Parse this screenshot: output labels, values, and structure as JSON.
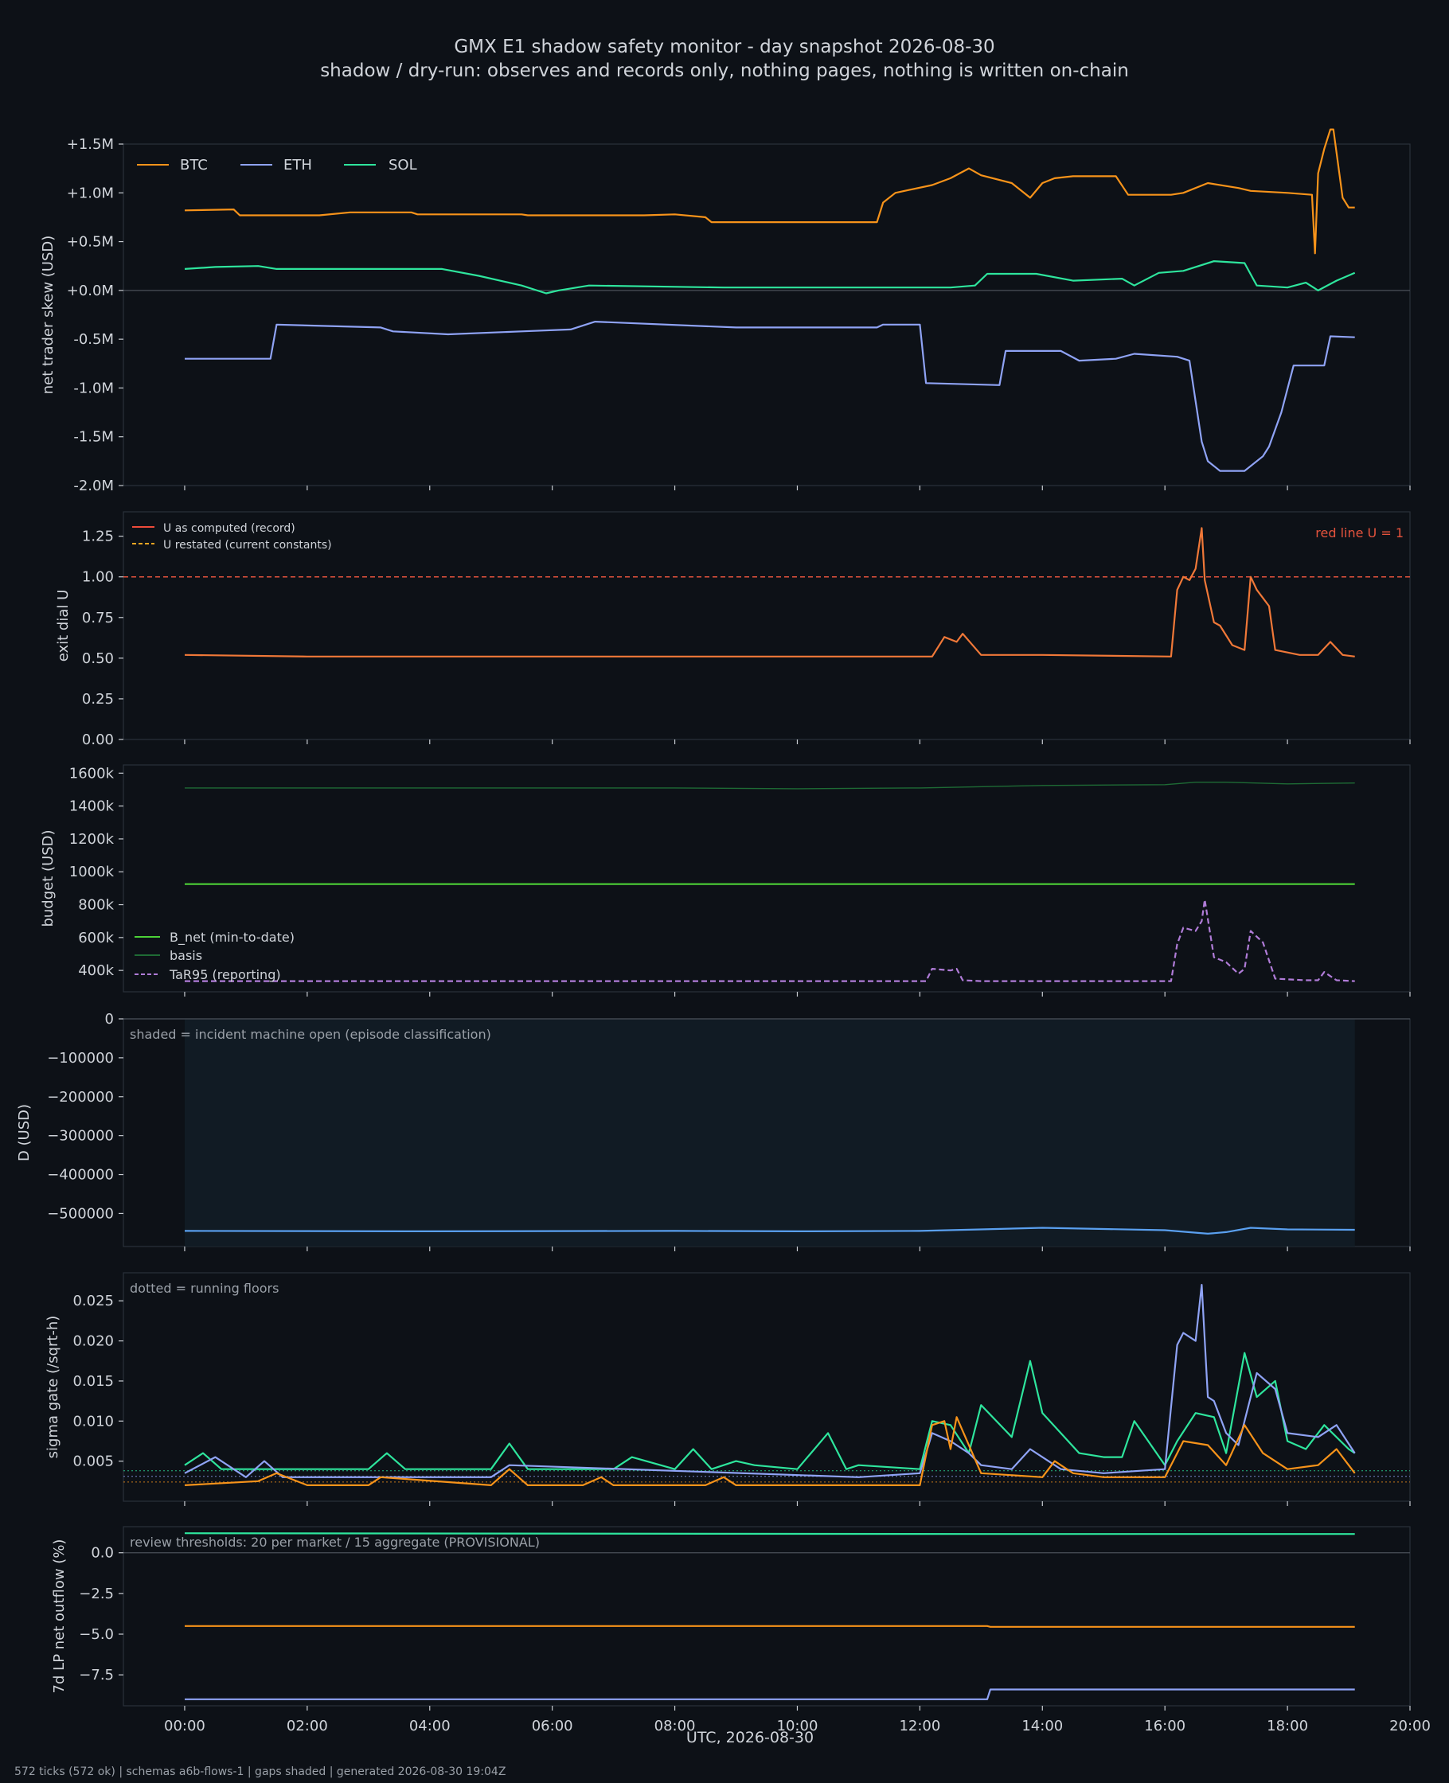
{
  "title": "GMX E1 shadow safety monitor - day snapshot 2026-08-30",
  "subtitle": "shadow / dry-run: observes and records only, nothing pages, nothing is written on-chain",
  "xlabel": "UTC, 2026-08-30",
  "footer": "572 ticks (572 ok) | schemas a6b-flows-1 | gaps shaded | generated 2026-08-30 19:04Z",
  "colors": {
    "background": "#0d1117",
    "btc": "#f7931a",
    "eth": "#8fa3f5",
    "sol": "#2ee59d",
    "u_record": "#ee4b3a",
    "u_restated": "#f5a623",
    "redline": "#e5533d",
    "b_net": "#4cd137",
    "basis": "#1e6b35",
    "tar95": "#b07cd8",
    "d_line": "#5aa0f0",
    "incident_shade": "#111b24"
  },
  "chart_data": [
    {
      "type": "line",
      "ylabel": "net trader skew (USD)",
      "xlim": [
        -1,
        20
      ],
      "ylim": [
        -2.0,
        1.5
      ],
      "yticks": [
        1.5,
        1.0,
        0.5,
        0.0,
        -0.5,
        -1.0,
        -1.5,
        -2.0
      ],
      "ytick_labels": [
        "+1.5M",
        "+1.0M",
        "+0.5M",
        "+0.0M",
        "-0.5M",
        "-1.0M",
        "-1.5M",
        "-2.0M"
      ],
      "zero_line": true,
      "legend": "top-left",
      "series": [
        {
          "name": "BTC",
          "color": "#f7931a",
          "x": [
            0,
            0.8,
            0.9,
            2.2,
            2.7,
            3.7,
            3.8,
            5.5,
            5.6,
            7.5,
            8.0,
            8.5,
            8.6,
            11.3,
            11.4,
            11.6,
            12.2,
            12.5,
            12.8,
            13.0,
            13.5,
            13.8,
            14.0,
            14.2,
            14.5,
            15.2,
            15.4,
            16.1,
            16.3,
            16.7,
            17.2,
            17.4,
            18.0,
            18.4,
            18.45,
            18.5,
            18.6,
            18.7,
            18.75,
            18.9,
            19.0,
            19.1
          ],
          "y": [
            0.82,
            0.83,
            0.77,
            0.77,
            0.8,
            0.8,
            0.78,
            0.78,
            0.77,
            0.77,
            0.78,
            0.75,
            0.7,
            0.7,
            0.9,
            1.0,
            1.08,
            1.15,
            1.25,
            1.18,
            1.1,
            0.95,
            1.1,
            1.15,
            1.17,
            1.17,
            0.98,
            0.98,
            1.0,
            1.1,
            1.05,
            1.02,
            1.0,
            0.98,
            0.38,
            1.2,
            1.45,
            1.65,
            1.65,
            0.95,
            0.85,
            0.85
          ]
        },
        {
          "name": "ETH",
          "color": "#8fa3f5",
          "x": [
            0,
            1.0,
            1.4,
            1.5,
            3.2,
            3.4,
            4.3,
            5.5,
            6.3,
            6.7,
            9.0,
            11.3,
            11.4,
            12.0,
            12.1,
            13.3,
            13.4,
            14.3,
            14.6,
            15.2,
            15.5,
            16.2,
            16.4,
            16.6,
            16.7,
            16.9,
            17.3,
            17.6,
            17.7,
            17.9,
            18.1,
            18.4,
            18.6,
            18.7,
            19.1
          ],
          "y": [
            -0.7,
            -0.7,
            -0.7,
            -0.35,
            -0.38,
            -0.42,
            -0.45,
            -0.42,
            -0.4,
            -0.32,
            -0.38,
            -0.38,
            -0.35,
            -0.35,
            -0.95,
            -0.97,
            -0.62,
            -0.62,
            -0.72,
            -0.7,
            -0.65,
            -0.68,
            -0.72,
            -1.55,
            -1.75,
            -1.85,
            -1.85,
            -1.7,
            -1.6,
            -1.25,
            -0.77,
            -0.77,
            -0.77,
            -0.47,
            -0.48
          ]
        },
        {
          "name": "SOL",
          "color": "#2ee59d",
          "x": [
            0,
            0.5,
            1.2,
            1.5,
            4.2,
            4.8,
            5.5,
            5.9,
            6.1,
            6.6,
            8.8,
            11.5,
            12.5,
            12.9,
            13.1,
            13.9,
            14.5,
            15.3,
            15.5,
            15.9,
            16.3,
            16.8,
            17.3,
            17.5,
            18.0,
            18.3,
            18.5,
            18.8,
            19.1
          ],
          "y": [
            0.22,
            0.24,
            0.25,
            0.22,
            0.22,
            0.15,
            0.05,
            -0.03,
            0.0,
            0.05,
            0.03,
            0.03,
            0.03,
            0.05,
            0.17,
            0.17,
            0.1,
            0.12,
            0.05,
            0.18,
            0.2,
            0.3,
            0.28,
            0.05,
            0.03,
            0.08,
            0.0,
            0.1,
            0.18
          ]
        }
      ]
    },
    {
      "type": "line",
      "ylabel": "exit dial U",
      "xlim": [
        -1,
        20
      ],
      "ylim": [
        0.0,
        1.4
      ],
      "yticks": [
        0.0,
        0.25,
        0.5,
        0.75,
        1.0,
        1.25
      ],
      "ytick_labels": [
        "0.00",
        "0.25",
        "0.50",
        "0.75",
        "1.00",
        "1.25"
      ],
      "reference_line": {
        "y": 1.0,
        "label": "red line U = 1"
      },
      "legend": "top-left",
      "series": [
        {
          "name": "U as computed (record)",
          "color": "#ee4b3a",
          "x": [
            0,
            2.0,
            12.2,
            12.4,
            12.6,
            12.7,
            13.0,
            14.0,
            16.1,
            16.2,
            16.3,
            16.4,
            16.5,
            16.6,
            16.65,
            16.8,
            16.9,
            17.1,
            17.3,
            17.4,
            17.5,
            17.7,
            17.8,
            18.2,
            18.5,
            18.7,
            18.9,
            19.1
          ],
          "y": [
            0.52,
            0.51,
            0.51,
            0.63,
            0.6,
            0.65,
            0.52,
            0.52,
            0.51,
            0.92,
            1.0,
            0.98,
            1.05,
            1.3,
            0.98,
            0.72,
            0.7,
            0.58,
            0.55,
            1.0,
            0.92,
            0.82,
            0.55,
            0.52,
            0.52,
            0.6,
            0.52,
            0.51
          ]
        },
        {
          "name": "U restated (current constants)",
          "color": "#f5a623",
          "dashed": true,
          "x": [
            0,
            2.0,
            12.2,
            12.4,
            12.6,
            12.7,
            13.0,
            14.0,
            16.1,
            16.2,
            16.3,
            16.4,
            16.5,
            16.6,
            16.65,
            16.8,
            16.9,
            17.1,
            17.3,
            17.4,
            17.5,
            17.7,
            17.8,
            18.2,
            18.5,
            18.7,
            18.9,
            19.1
          ],
          "y": [
            0.52,
            0.51,
            0.51,
            0.63,
            0.6,
            0.65,
            0.52,
            0.52,
            0.51,
            0.92,
            1.0,
            0.98,
            1.05,
            1.3,
            0.98,
            0.72,
            0.7,
            0.58,
            0.55,
            1.0,
            0.92,
            0.82,
            0.55,
            0.52,
            0.52,
            0.6,
            0.52,
            0.51
          ]
        }
      ]
    },
    {
      "type": "line",
      "ylabel": "budget (USD)",
      "xlim": [
        -1,
        20
      ],
      "ylim": [
        270,
        1650
      ],
      "yticks": [
        400,
        600,
        800,
        1000,
        1200,
        1400,
        1600
      ],
      "ytick_labels": [
        "400k",
        "600k",
        "800k",
        "1000k",
        "1200k",
        "1400k",
        "1600k"
      ],
      "legend": "lower-left",
      "series": [
        {
          "name": "B_net (min-to-date)",
          "color": "#4cd137",
          "x": [
            0,
            19.1
          ],
          "y": [
            925,
            925
          ]
        },
        {
          "name": "basis",
          "color": "#1e6b35",
          "x": [
            0,
            4,
            8,
            10,
            12,
            14,
            16,
            16.5,
            17,
            18,
            19.1
          ],
          "y": [
            1510,
            1510,
            1510,
            1505,
            1510,
            1525,
            1530,
            1545,
            1545,
            1535,
            1540
          ]
        },
        {
          "name": "TaR95 (reporting)",
          "color": "#b07cd8",
          "dashed": true,
          "x": [
            0,
            12.1,
            12.2,
            12.5,
            12.6,
            12.7,
            13.0,
            16.1,
            16.2,
            16.3,
            16.5,
            16.6,
            16.65,
            16.8,
            17.0,
            17.2,
            17.3,
            17.4,
            17.6,
            17.8,
            18.3,
            18.5,
            18.6,
            18.8,
            19.1
          ],
          "y": [
            335,
            335,
            410,
            400,
            410,
            340,
            335,
            335,
            560,
            660,
            640,
            700,
            830,
            480,
            450,
            380,
            410,
            640,
            570,
            350,
            340,
            340,
            390,
            340,
            335
          ]
        }
      ]
    },
    {
      "type": "line",
      "ylabel": "D (USD)",
      "xlim": [
        -1,
        20
      ],
      "ylim": [
        -585000,
        0
      ],
      "yticks": [
        0,
        -100000,
        -200000,
        -300000,
        -400000,
        -500000
      ],
      "ytick_labels": [
        "0",
        "−100000",
        "−200000",
        "−300000",
        "−400000",
        "−500000"
      ],
      "zero_line": true,
      "annotation": "shaded = incident machine open (episode classification)",
      "shade": {
        "x0": 0,
        "x1": 19.1
      },
      "series": [
        {
          "x": [
            0,
            4,
            8,
            10,
            12,
            13,
            14,
            15,
            16,
            16.7,
            17.0,
            17.4,
            18,
            19.1
          ],
          "y": [
            -545000,
            -546000,
            -545000,
            -546000,
            -545000,
            -541000,
            -537000,
            -540000,
            -543000,
            -552000,
            -548000,
            -537000,
            -541000,
            -542000
          ]
        }
      ]
    },
    {
      "type": "line",
      "ylabel": "sigma gate (/sqrt-h)",
      "xlim": [
        -1,
        20
      ],
      "ylim": [
        0.0,
        0.0285
      ],
      "yticks": [
        0.005,
        0.01,
        0.015,
        0.02,
        0.025
      ],
      "ytick_labels": [
        "0.005",
        "0.010",
        "0.015",
        "0.020",
        "0.025"
      ],
      "annotation": "dotted = running floors",
      "floors": [
        0.0038,
        0.0031,
        0.0024
      ],
      "series": [
        {
          "name": "SOL",
          "color": "#2ee59d",
          "x": [
            0,
            0.3,
            0.6,
            1.5,
            3.0,
            3.3,
            3.6,
            5.0,
            5.3,
            5.6,
            7.0,
            7.3,
            8.0,
            8.3,
            8.6,
            9.0,
            9.3,
            10.0,
            10.5,
            10.8,
            11.0,
            12.0,
            12.2,
            12.5,
            12.8,
            13.0,
            13.5,
            13.8,
            14.0,
            14.3,
            14.6,
            15.0,
            15.3,
            15.5,
            16.0,
            16.2,
            16.5,
            16.8,
            17.0,
            17.3,
            17.5,
            17.8,
            18.0,
            18.3,
            18.6,
            19.0,
            19.1
          ],
          "y": [
            0.0045,
            0.006,
            0.004,
            0.004,
            0.004,
            0.006,
            0.004,
            0.004,
            0.0072,
            0.004,
            0.004,
            0.0055,
            0.004,
            0.0065,
            0.004,
            0.005,
            0.0045,
            0.004,
            0.0085,
            0.004,
            0.0045,
            0.004,
            0.01,
            0.0095,
            0.006,
            0.012,
            0.008,
            0.0175,
            0.011,
            0.0085,
            0.006,
            0.0055,
            0.0055,
            0.01,
            0.0045,
            0.0075,
            0.011,
            0.0105,
            0.006,
            0.0185,
            0.013,
            0.015,
            0.0075,
            0.0065,
            0.0095,
            0.0065,
            0.006
          ]
        },
        {
          "name": "ETH",
          "color": "#8fa3f5",
          "x": [
            0,
            0.5,
            1.0,
            1.3,
            1.6,
            5.0,
            5.3,
            11.0,
            12.0,
            12.2,
            12.5,
            12.8,
            13.0,
            13.5,
            13.8,
            14.0,
            14.3,
            15.0,
            16.0,
            16.2,
            16.3,
            16.5,
            16.6,
            16.7,
            16.8,
            17.0,
            17.2,
            17.5,
            17.8,
            18.0,
            18.5,
            18.8,
            19.1
          ],
          "y": [
            0.0035,
            0.0055,
            0.003,
            0.005,
            0.003,
            0.003,
            0.0045,
            0.003,
            0.0035,
            0.0085,
            0.0075,
            0.006,
            0.0045,
            0.004,
            0.0065,
            0.0055,
            0.004,
            0.0035,
            0.004,
            0.0195,
            0.021,
            0.02,
            0.027,
            0.013,
            0.0125,
            0.0085,
            0.007,
            0.016,
            0.014,
            0.0085,
            0.008,
            0.0095,
            0.006
          ]
        },
        {
          "name": "BTC",
          "color": "#f7931a",
          "x": [
            0,
            1.2,
            1.5,
            2.0,
            3.0,
            3.2,
            5.0,
            5.3,
            5.6,
            6.5,
            6.8,
            7.0,
            8.5,
            8.8,
            9.0,
            12.0,
            12.2,
            12.4,
            12.5,
            12.6,
            13.0,
            14.0,
            14.2,
            14.5,
            15.0,
            16.0,
            16.3,
            16.7,
            17.0,
            17.3,
            17.6,
            18.0,
            18.5,
            18.8,
            19.1
          ],
          "y": [
            0.002,
            0.0025,
            0.0035,
            0.002,
            0.002,
            0.003,
            0.002,
            0.004,
            0.002,
            0.002,
            0.003,
            0.002,
            0.002,
            0.003,
            0.002,
            0.002,
            0.0095,
            0.01,
            0.0065,
            0.0105,
            0.0035,
            0.003,
            0.005,
            0.0035,
            0.003,
            0.003,
            0.0075,
            0.007,
            0.0045,
            0.0095,
            0.006,
            0.004,
            0.0045,
            0.0065,
            0.0035
          ]
        }
      ]
    },
    {
      "type": "line",
      "ylabel": "7d LP net outflow (%)",
      "xlabel": "UTC, 2026-08-30",
      "xlim": [
        -1,
        20
      ],
      "xticks": [
        0,
        2,
        4,
        6,
        8,
        10,
        12,
        14,
        16,
        18,
        20
      ],
      "xtick_labels": [
        "00:00",
        "02:00",
        "04:00",
        "06:00",
        "08:00",
        "10:00",
        "12:00",
        "14:00",
        "16:00",
        "18:00",
        "20:00"
      ],
      "ylim": [
        -9.4,
        1.6
      ],
      "yticks": [
        0.0,
        -2.5,
        -5.0,
        -7.5
      ],
      "ytick_labels": [
        "0.0",
        "−2.5",
        "−5.0",
        "−7.5"
      ],
      "zero_line": true,
      "annotation": "review thresholds: 20 per market / 15 aggregate (PROVISIONAL)",
      "series": [
        {
          "name": "SOL",
          "color": "#2ee59d",
          "x": [
            0,
            13.1,
            19.1
          ],
          "y": [
            1.2,
            1.15,
            1.15
          ]
        },
        {
          "name": "BTC",
          "color": "#f7931a",
          "x": [
            0,
            13.1,
            13.15,
            19.1
          ],
          "y": [
            -4.5,
            -4.5,
            -4.55,
            -4.55
          ]
        },
        {
          "name": "ETH",
          "color": "#8fa3f5",
          "x": [
            0,
            13.1,
            13.15,
            19.1
          ],
          "y": [
            -9.0,
            -9.0,
            -8.4,
            -8.4
          ]
        }
      ]
    }
  ]
}
